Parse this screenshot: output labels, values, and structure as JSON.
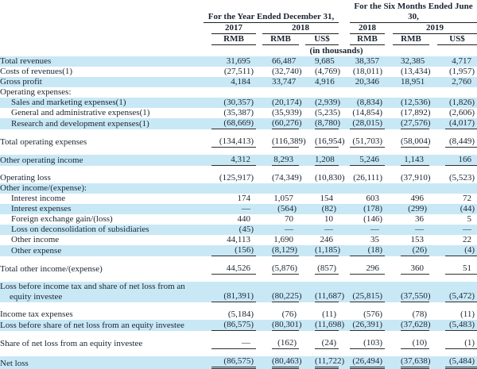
{
  "colors": {
    "row_highlight": "#c9e8f6",
    "text": "#1a2431",
    "rule_line": "#2f2f2f"
  },
  "table": {
    "unit_note": "(in thousands)",
    "groups": [
      {
        "label": "For the Year Ended December 31,",
        "years": [
          {
            "label": "2017",
            "cols": 1
          },
          {
            "label": "2018",
            "cols": 2
          }
        ]
      },
      {
        "label": "For the Six Months Ended June 30,",
        "years": [
          {
            "label": "2018",
            "cols": 1
          },
          {
            "label": "2019",
            "cols": 2
          }
        ]
      }
    ],
    "currency_headers": [
      "RMB",
      "RMB",
      "US$",
      "RMB",
      "RMB",
      "US$"
    ],
    "rows": [
      {
        "label": "Total revenues",
        "bold": true,
        "indent": false,
        "highlight": true,
        "underline": "none",
        "values": [
          "31,695",
          "66,487",
          "9,685",
          "38,357",
          "32,385",
          "4,717"
        ]
      },
      {
        "label": "Costs of revenues(1)",
        "bold": true,
        "indent": false,
        "highlight": false,
        "underline": "none",
        "values": [
          "(27,511)",
          "(32,740)",
          "(4,769)",
          "(18,011)",
          "(13,434)",
          "(1,957)"
        ]
      },
      {
        "label": "Gross profit",
        "bold": true,
        "indent": false,
        "highlight": true,
        "underline": "none",
        "values": [
          "4,184",
          "33,747",
          "4,916",
          "20,346",
          "18,951",
          "2,760"
        ]
      },
      {
        "label": "Operating expenses:",
        "bold": true,
        "indent": false,
        "highlight": false,
        "underline": "none",
        "values": [
          "",
          "",
          "",
          "",
          "",
          ""
        ]
      },
      {
        "label": "Sales and marketing expenses(1)",
        "bold": false,
        "indent": true,
        "highlight": true,
        "underline": "none",
        "values": [
          "(30,357)",
          "(20,174)",
          "(2,939)",
          "(8,834)",
          "(12,536)",
          "(1,826)"
        ]
      },
      {
        "label": "General and administrative expenses(1)",
        "bold": false,
        "indent": true,
        "highlight": false,
        "underline": "none",
        "values": [
          "(35,387)",
          "(35,939)",
          "(5,235)",
          "(14,854)",
          "(17,892)",
          "(2,606)"
        ]
      },
      {
        "label": "Research and development expenses(1)",
        "bold": false,
        "indent": true,
        "highlight": true,
        "underline": "single",
        "values": [
          "(68,669)",
          "(60,276)",
          "(8,780)",
          "(28,015)",
          "(27,576)",
          "(4,017)"
        ]
      },
      {
        "type": "spacer"
      },
      {
        "label": "Total operating expenses",
        "bold": true,
        "indent": false,
        "highlight": false,
        "underline": "single",
        "values": [
          "(134,413)",
          "(116,389)",
          "(16,954)",
          "(51,703)",
          "(58,004)",
          "(8,449)"
        ]
      },
      {
        "type": "spacer"
      },
      {
        "label": "Other operating income",
        "bold": true,
        "indent": false,
        "highlight": true,
        "underline": "single",
        "values": [
          "4,312",
          "8,293",
          "1,208",
          "5,246",
          "1,143",
          "166"
        ]
      },
      {
        "type": "spacer"
      },
      {
        "label": "Operating loss",
        "bold": true,
        "indent": false,
        "highlight": false,
        "underline": "none",
        "values": [
          "(125,917)",
          "(74,349)",
          "(10,830)",
          "(26,111)",
          "(37,910)",
          "(5,523)"
        ]
      },
      {
        "label": "Other income/(expense):",
        "bold": true,
        "indent": false,
        "highlight": true,
        "underline": "none",
        "values": [
          "",
          "",
          "",
          "",
          "",
          ""
        ]
      },
      {
        "label": "Interest income",
        "bold": false,
        "indent": true,
        "highlight": false,
        "underline": "none",
        "values": [
          "174",
          "1,057",
          "154",
          "603",
          "496",
          "72"
        ]
      },
      {
        "label": "Interest expenses",
        "bold": false,
        "indent": true,
        "highlight": true,
        "underline": "none",
        "values": [
          "—",
          "(564)",
          "(82)",
          "(178)",
          "(299)",
          "(44)"
        ]
      },
      {
        "label": "Foreign exchange gain/(loss)",
        "bold": false,
        "indent": true,
        "highlight": false,
        "underline": "none",
        "values": [
          "440",
          "70",
          "10",
          "(146)",
          "36",
          "5"
        ]
      },
      {
        "label": "Loss on deconsolidation of subsidiaries",
        "bold": false,
        "indent": true,
        "highlight": true,
        "underline": "none",
        "values": [
          "(45)",
          "—",
          "—",
          "—",
          "—",
          "—"
        ]
      },
      {
        "label": "Other income",
        "bold": false,
        "indent": true,
        "highlight": false,
        "underline": "none",
        "values": [
          "44,113",
          "1,690",
          "246",
          "35",
          "153",
          "22"
        ]
      },
      {
        "label": "Other expense",
        "bold": false,
        "indent": true,
        "highlight": true,
        "underline": "single",
        "values": [
          "(156)",
          "(8,129)",
          "(1,185)",
          "(18)",
          "(26)",
          "(4)"
        ]
      },
      {
        "type": "spacer"
      },
      {
        "label": "Total other income/(expense)",
        "bold": true,
        "indent": false,
        "highlight": false,
        "underline": "single",
        "values": [
          "44,526",
          "(5,876)",
          "(857)",
          "296",
          "360",
          "51"
        ]
      },
      {
        "type": "spacer"
      },
      {
        "label": "Loss before income tax and share of net loss from an equity investee",
        "bold": true,
        "indent": false,
        "highlight": true,
        "underline": "single",
        "values": [
          "(81,391)",
          "(80,225)",
          "(11,687)",
          "(25,815)",
          "(37,550)",
          "(5,472)"
        ]
      },
      {
        "type": "spacer"
      },
      {
        "label": "Income tax expenses",
        "bold": false,
        "indent": false,
        "highlight": false,
        "underline": "none",
        "values": [
          "(5,184)",
          "(76)",
          "(11)",
          "(576)",
          "(78)",
          "(11)"
        ]
      },
      {
        "label": "Loss before share of net loss from an equity investee",
        "bold": true,
        "indent": false,
        "highlight": true,
        "underline": "single",
        "values": [
          "(86,575)",
          "(80,301)",
          "(11,698)",
          "(26,391)",
          "(37,628)",
          "(5,483)"
        ]
      },
      {
        "type": "spacer"
      },
      {
        "label": "Share of net loss from an equity investee",
        "bold": false,
        "indent": false,
        "highlight": false,
        "underline": "single",
        "values": [
          "—",
          "(162)",
          "(24)",
          "(103)",
          "(10)",
          "(1)"
        ]
      },
      {
        "type": "spacer"
      },
      {
        "label": "Net loss",
        "bold": true,
        "indent": false,
        "highlight": true,
        "underline": "double",
        "values": [
          "(86,575)",
          "(80,463)",
          "(11,722)",
          "(26,494)",
          "(37,638)",
          "(5,484)"
        ]
      }
    ]
  }
}
